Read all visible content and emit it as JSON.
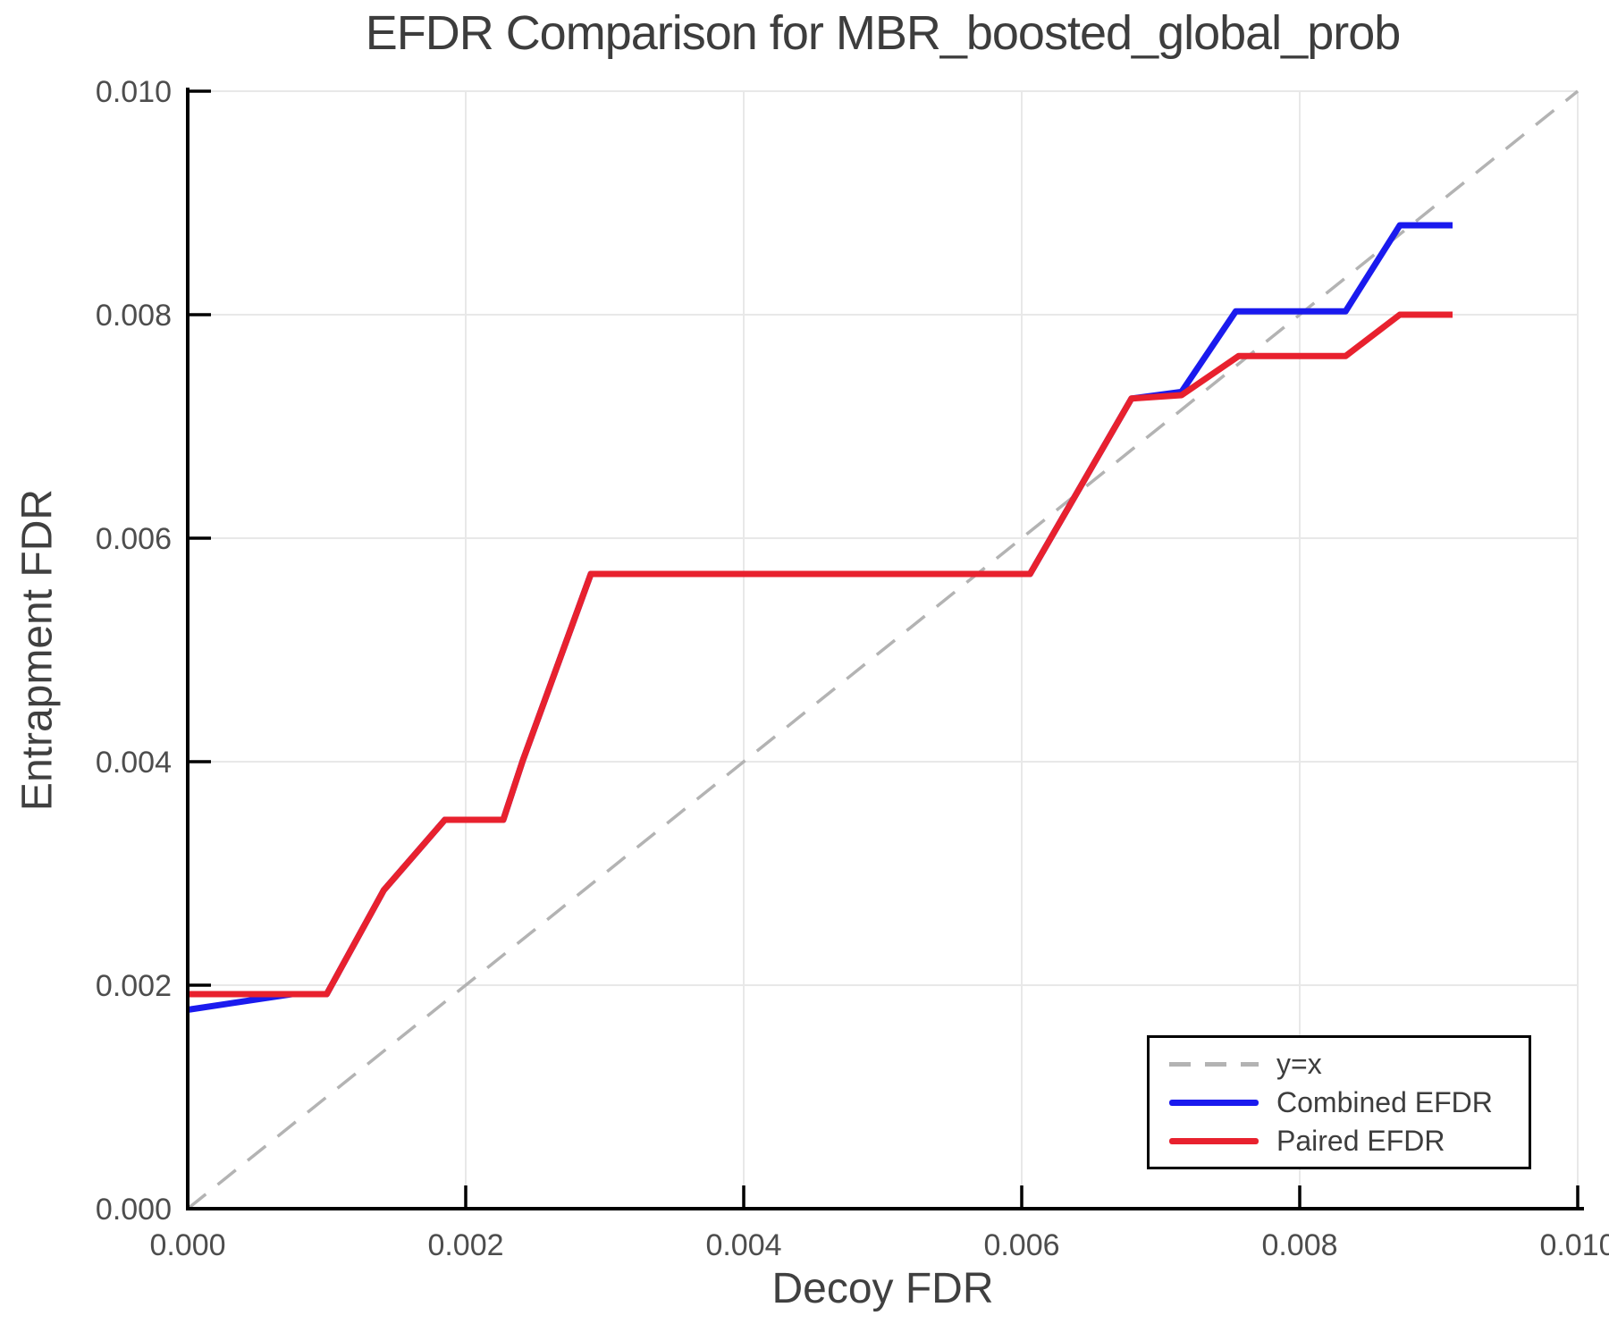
{
  "figure": {
    "background": "#ffffff"
  },
  "chart_data": {
    "type": "line",
    "title": "EFDR Comparison for MBR_boosted_global_prob",
    "xlabel": "Decoy FDR",
    "ylabel": "Entrapment FDR",
    "xlim": [
      0.0,
      0.01
    ],
    "ylim": [
      0.0,
      0.01
    ],
    "xticks": [
      0.0,
      0.002,
      0.004,
      0.006,
      0.008,
      0.01
    ],
    "yticks": [
      0.0,
      0.002,
      0.004,
      0.006,
      0.008,
      0.01
    ],
    "xtick_labels": [
      "0.000",
      "0.002",
      "0.004",
      "0.006",
      "0.008",
      "0.010"
    ],
    "ytick_labels": [
      "0.000",
      "0.002",
      "0.004",
      "0.006",
      "0.008",
      "0.010"
    ],
    "grid": true,
    "legend_position": "bottom-right",
    "colors": {
      "grid": "#e8e8e8",
      "axis": "#000000",
      "tick_text": "#4d4d4d",
      "title_text": "#3d3d3d",
      "background": "#ffffff"
    },
    "series": [
      {
        "name": "y=x",
        "style": "dashed",
        "color": "#b3b3b3",
        "points": [
          [
            0.0,
            0.0
          ],
          [
            0.01,
            0.01
          ]
        ]
      },
      {
        "name": "Combined EFDR",
        "style": "solid",
        "color": "#1a1aee",
        "points": [
          [
            0.0,
            0.00178
          ],
          [
            0.00075,
            0.00192
          ],
          [
            0.001,
            0.00192
          ],
          [
            0.00141,
            0.00285
          ],
          [
            0.00185,
            0.00348
          ],
          [
            0.00227,
            0.00348
          ],
          [
            0.00241,
            0.00401
          ],
          [
            0.0029,
            0.00568
          ],
          [
            0.00606,
            0.00568
          ],
          [
            0.00679,
            0.00725
          ],
          [
            0.00715,
            0.00731
          ],
          [
            0.00754,
            0.00803
          ],
          [
            0.00833,
            0.00803
          ],
          [
            0.00872,
            0.0088
          ],
          [
            0.0091,
            0.0088
          ]
        ]
      },
      {
        "name": "Paired EFDR",
        "style": "solid",
        "color": "#e8212e",
        "points": [
          [
            0.0,
            0.00192
          ],
          [
            0.001,
            0.00192
          ],
          [
            0.00141,
            0.00285
          ],
          [
            0.00185,
            0.00348
          ],
          [
            0.00227,
            0.00348
          ],
          [
            0.00241,
            0.00401
          ],
          [
            0.0029,
            0.00568
          ],
          [
            0.00606,
            0.00568
          ],
          [
            0.00679,
            0.00725
          ],
          [
            0.00715,
            0.00728
          ],
          [
            0.00756,
            0.00763
          ],
          [
            0.00833,
            0.00763
          ],
          [
            0.00872,
            0.008
          ],
          [
            0.0091,
            0.008
          ]
        ]
      }
    ]
  }
}
